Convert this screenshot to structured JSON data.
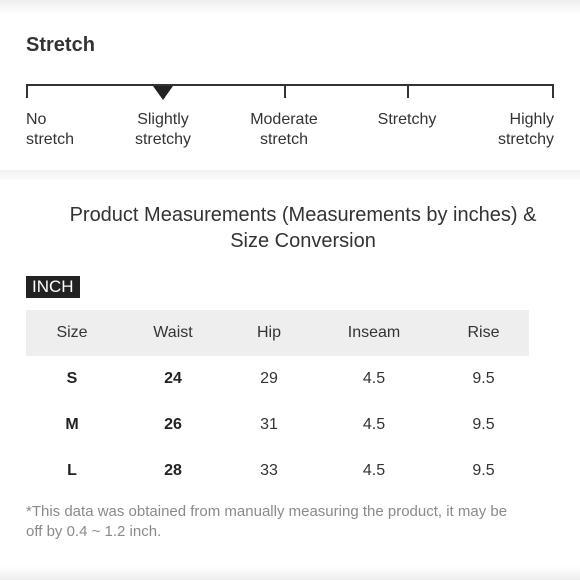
{
  "stretch": {
    "title": "Stretch",
    "selected_level": "Slightly stretchy",
    "levels": [
      {
        "label": "No\nstretch"
      },
      {
        "label": "Slightly\nstretchy"
      },
      {
        "label": "Moderate\nstretch"
      },
      {
        "label": "Stretchy"
      },
      {
        "label": "Highly\nstretchy"
      }
    ]
  },
  "measurements": {
    "title": "Product Measurements (Measurements by inches) & Size Conversion",
    "unit_badge": "INCH",
    "columns": [
      "Size",
      "Waist",
      "Hip",
      "Inseam",
      "Rise"
    ],
    "rows": [
      {
        "size": "S",
        "waist": "24",
        "hip": "29",
        "inseam": "4.5",
        "rise": "9.5"
      },
      {
        "size": "M",
        "waist": "26",
        "hip": "31",
        "inseam": "4.5",
        "rise": "9.5"
      },
      {
        "size": "L",
        "waist": "28",
        "hip": "33",
        "inseam": "4.5",
        "rise": "9.5"
      }
    ],
    "footnote": "*This data was obtained from manually measuring the product, it may be off by 0.4 ~ 1.2 inch."
  }
}
